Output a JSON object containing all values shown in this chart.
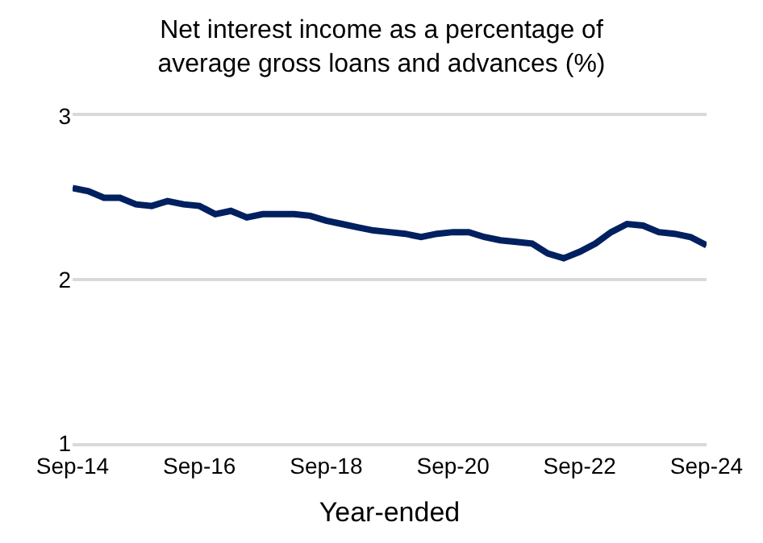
{
  "chart_data": {
    "type": "line",
    "title": "Net interest income as a percentage of average gross loans and advances (%)",
    "xlabel": "Year-ended",
    "x": [
      "2014-09",
      "2014-12",
      "2015-03",
      "2015-06",
      "2015-09",
      "2015-12",
      "2016-03",
      "2016-06",
      "2016-09",
      "2016-12",
      "2017-03",
      "2017-06",
      "2017-09",
      "2017-12",
      "2018-03",
      "2018-06",
      "2018-09",
      "2018-12",
      "2019-03",
      "2019-06",
      "2019-09",
      "2019-12",
      "2020-03",
      "2020-06",
      "2020-09",
      "2020-12",
      "2021-03",
      "2021-06",
      "2021-09",
      "2021-12",
      "2022-03",
      "2022-06",
      "2022-09",
      "2022-12",
      "2023-03",
      "2023-06",
      "2023-09",
      "2023-12",
      "2024-03",
      "2024-06",
      "2024-09"
    ],
    "series": [
      {
        "color": "#002060",
        "values": [
          2.56,
          2.54,
          2.5,
          2.5,
          2.46,
          2.45,
          2.48,
          2.46,
          2.45,
          2.4,
          2.42,
          2.38,
          2.4,
          2.4,
          2.4,
          2.39,
          2.36,
          2.34,
          2.32,
          2.3,
          2.29,
          2.28,
          2.26,
          2.28,
          2.29,
          2.29,
          2.26,
          2.24,
          2.23,
          2.22,
          2.16,
          2.13,
          2.17,
          2.22,
          2.29,
          2.34,
          2.33,
          2.29,
          2.28,
          2.26,
          2.21
        ]
      }
    ],
    "xlim": [
      "2014-09",
      "2024-09"
    ],
    "xticks": [
      {
        "value": "2014-09",
        "label": "Sep-14"
      },
      {
        "value": "2016-09",
        "label": "Sep-16"
      },
      {
        "value": "2018-09",
        "label": "Sep-18"
      },
      {
        "value": "2020-09",
        "label": "Sep-20"
      },
      {
        "value": "2022-09",
        "label": "Sep-22"
      },
      {
        "value": "2024-09",
        "label": "Sep-24"
      }
    ],
    "ylim": [
      1,
      3
    ],
    "yticks": [
      1,
      2,
      3
    ],
    "grid": "y",
    "marker": "none",
    "line_style": "solid"
  }
}
